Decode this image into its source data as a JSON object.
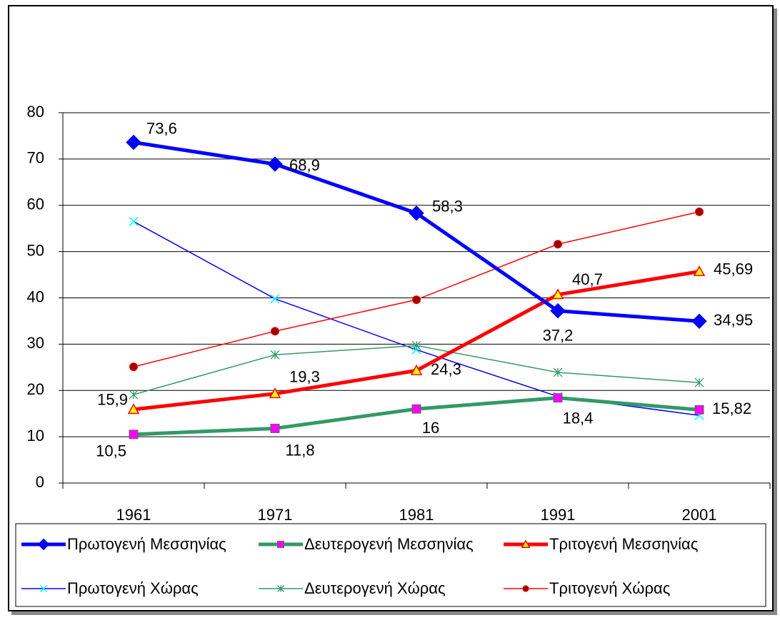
{
  "chart_data": {
    "type": "line",
    "categories": [
      "1961",
      "1971",
      "1981",
      "1991",
      "2001"
    ],
    "series": [
      {
        "name": "Πρωτογενή Μεσσηνίας",
        "color": "#0000ff",
        "marker": "diamond",
        "marker_color": "#0000cc",
        "style": "thick",
        "values": [
          73.6,
          68.9,
          58.3,
          37.2,
          34.95
        ],
        "value_labels": [
          "73,6",
          "68,9",
          "58,3",
          "37,2",
          "34,95"
        ]
      },
      {
        "name": "Δευτερογενή Μεσσηνίας",
        "color": "#339966",
        "marker": "square",
        "marker_color": "#ff00ff",
        "style": "thick",
        "values": [
          10.5,
          11.8,
          16,
          18.4,
          15.82
        ],
        "value_labels": [
          "10,5",
          "11,8",
          "16",
          "18,4",
          "15,82"
        ]
      },
      {
        "name": "Τριτογενή Μεσσηνίας",
        "color": "#ff0000",
        "marker": "triangle",
        "marker_color": "#ffff00",
        "style": "thick",
        "values": [
          15.9,
          19.3,
          24.3,
          40.7,
          45.69
        ],
        "value_labels": [
          "15,9",
          "19,3",
          "24,3",
          "40,7",
          "45,69"
        ]
      },
      {
        "name": "Πρωτογενή Χώρας",
        "color": "#0000ff",
        "marker": "x",
        "marker_color": "#00ffff",
        "style": "thin",
        "values": [
          56.5,
          39.8,
          28.8,
          18.7,
          14.6
        ]
      },
      {
        "name": "Δευτερογενή Χώρας",
        "color": "#339966",
        "marker": "asterisk",
        "marker_color": "#339966",
        "style": "thin",
        "values": [
          19.1,
          27.7,
          29.7,
          23.9,
          21.7
        ]
      },
      {
        "name": "Τριτογενή Χώρας",
        "color": "#ff0000",
        "marker": "circle",
        "marker_color": "#990000",
        "style": "thin",
        "values": [
          25.1,
          32.8,
          39.6,
          51.6,
          58.6
        ]
      }
    ],
    "ylim": [
      0,
      80
    ],
    "yticks": [
      0,
      10,
      20,
      30,
      40,
      50,
      60,
      70,
      80
    ],
    "grid": true,
    "legend": "bottom"
  }
}
